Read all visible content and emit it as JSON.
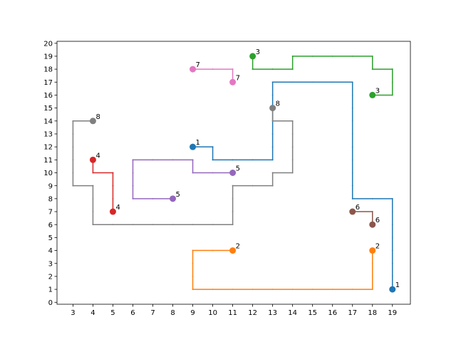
{
  "chart_data": {
    "type": "line",
    "title": "",
    "xlabel": "",
    "ylabel": "",
    "xlim": [
      2.2,
      19.9
    ],
    "ylim": [
      -0.15,
      20.15
    ],
    "x_ticks": [
      3,
      4,
      5,
      6,
      7,
      8,
      9,
      10,
      11,
      12,
      13,
      14,
      15,
      16,
      17,
      18,
      19
    ],
    "y_ticks": [
      0,
      1,
      2,
      3,
      4,
      5,
      6,
      7,
      8,
      9,
      10,
      11,
      12,
      13,
      14,
      15,
      16,
      17,
      18,
      19,
      20
    ],
    "grid": false,
    "legend": "none",
    "series": [
      {
        "label": "1",
        "color": "#1f77b4",
        "points": [
          [
            9,
            12
          ],
          [
            10,
            12
          ],
          [
            10,
            11
          ],
          [
            13,
            11
          ],
          [
            13,
            17
          ],
          [
            17,
            17
          ],
          [
            17,
            8
          ],
          [
            19,
            8
          ],
          [
            19,
            1
          ]
        ],
        "endpoints": [
          [
            9,
            12
          ],
          [
            19,
            1
          ]
        ]
      },
      {
        "label": "2",
        "color": "#ff7f0e",
        "points": [
          [
            11,
            4
          ],
          [
            9,
            4
          ],
          [
            9,
            1
          ],
          [
            18,
            1
          ],
          [
            18,
            4
          ]
        ],
        "endpoints": [
          [
            11,
            4
          ],
          [
            18,
            4
          ]
        ]
      },
      {
        "label": "3",
        "color": "#2ca02c",
        "points": [
          [
            12,
            19
          ],
          [
            12,
            18
          ],
          [
            14,
            18
          ],
          [
            14,
            19
          ],
          [
            18,
            19
          ],
          [
            18,
            18
          ],
          [
            19,
            18
          ],
          [
            19,
            16
          ],
          [
            18,
            16
          ]
        ],
        "endpoints": [
          [
            12,
            19
          ],
          [
            18,
            16
          ]
        ]
      },
      {
        "label": "4",
        "color": "#d62728",
        "points": [
          [
            4,
            11
          ],
          [
            4,
            10
          ],
          [
            5,
            10
          ],
          [
            5,
            7
          ]
        ],
        "endpoints": [
          [
            4,
            11
          ],
          [
            5,
            7
          ]
        ]
      },
      {
        "label": "5",
        "color": "#9467bd",
        "points": [
          [
            11,
            10
          ],
          [
            9,
            10
          ],
          [
            9,
            11
          ],
          [
            6,
            11
          ],
          [
            6,
            8
          ],
          [
            8,
            8
          ]
        ],
        "endpoints": [
          [
            11,
            10
          ],
          [
            8,
            8
          ]
        ]
      },
      {
        "label": "6",
        "color": "#8c564b",
        "points": [
          [
            17,
            7
          ],
          [
            18,
            7
          ],
          [
            18,
            6
          ]
        ],
        "endpoints": [
          [
            17,
            7
          ],
          [
            18,
            6
          ]
        ]
      },
      {
        "label": "7",
        "color": "#e377c2",
        "points": [
          [
            9,
            18
          ],
          [
            11,
            18
          ],
          [
            11,
            17
          ]
        ],
        "endpoints": [
          [
            9,
            18
          ],
          [
            11,
            17
          ]
        ]
      },
      {
        "label": "8",
        "color": "#7f7f7f",
        "points": [
          [
            13,
            15
          ],
          [
            13,
            14
          ],
          [
            14,
            14
          ],
          [
            14,
            10
          ],
          [
            13,
            10
          ],
          [
            13,
            9
          ],
          [
            11,
            9
          ],
          [
            11,
            6
          ],
          [
            4,
            6
          ],
          [
            4,
            9
          ],
          [
            3,
            9
          ],
          [
            3,
            14
          ],
          [
            4,
            14
          ]
        ],
        "endpoints": [
          [
            13,
            15
          ],
          [
            4,
            14
          ]
        ]
      }
    ]
  }
}
